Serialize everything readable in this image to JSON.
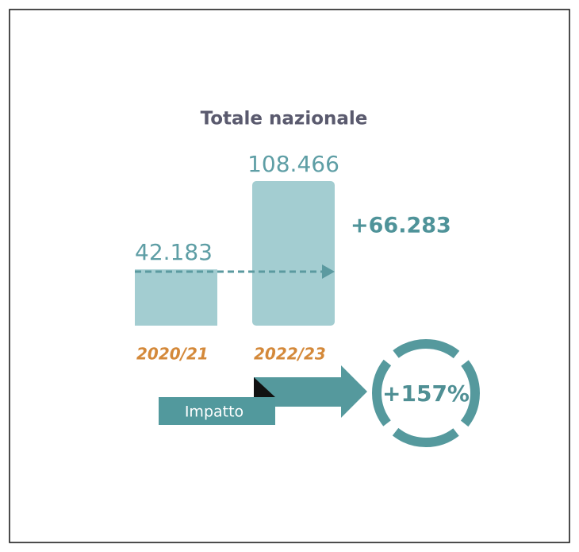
{
  "chart_data": {
    "type": "bar",
    "title": "Totale nazionale",
    "categories": [
      "2020/21",
      "2022/23"
    ],
    "values": [
      42183,
      108466
    ],
    "value_labels": [
      "42.183",
      "108.466"
    ],
    "color": "#a3cdd1",
    "annotations": {
      "difference": "+66.283",
      "impact_label": "Impatto",
      "impact_value": "+157%"
    }
  }
}
